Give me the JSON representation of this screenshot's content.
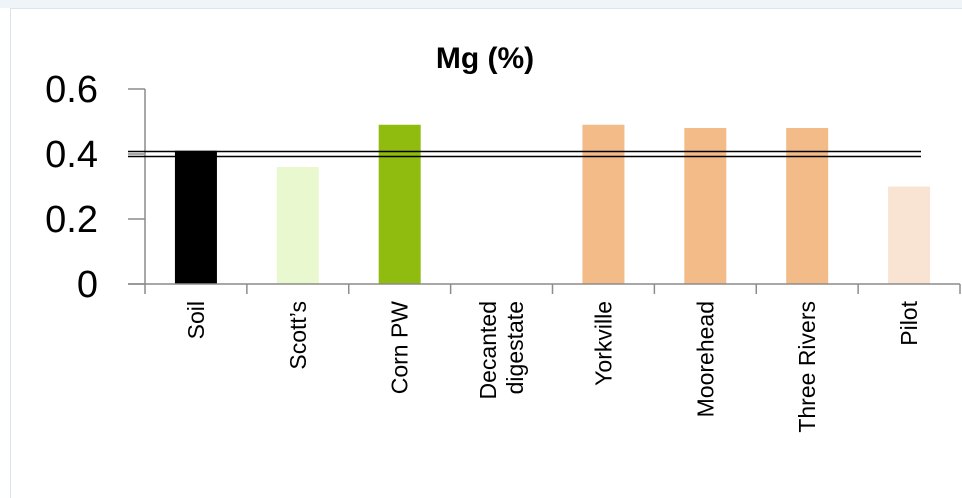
{
  "chart_data": {
    "type": "bar",
    "title": "Mg (%)",
    "xlabel": "",
    "ylabel": "",
    "ylim": [
      0,
      0.6
    ],
    "yticks": [
      0,
      0.2,
      0.4,
      0.6
    ],
    "ytick_labels": [
      "0",
      "0.2",
      "0.4",
      "0.6"
    ],
    "categories": [
      [
        "Soil"
      ],
      [
        "Scott’s"
      ],
      [
        "Corn PW"
      ],
      [
        "Decanted",
        "digestate"
      ],
      [
        "Yorkville"
      ],
      [
        "Moorehead"
      ],
      [
        "Three Rivers"
      ],
      [
        "Pilot"
      ]
    ],
    "values": [
      0.41,
      0.36,
      0.49,
      null,
      0.49,
      0.48,
      0.48,
      0.3
    ],
    "colors": [
      "#000000",
      "#eaf8cf",
      "#8fbc0e",
      "#ffffff",
      "#f3bb88",
      "#f3bb88",
      "#f3bb88",
      "#f9e4d3"
    ],
    "reference_line": {
      "value": 0.4,
      "style": "double",
      "color": "#000000"
    },
    "grid": false,
    "legend": "none"
  }
}
